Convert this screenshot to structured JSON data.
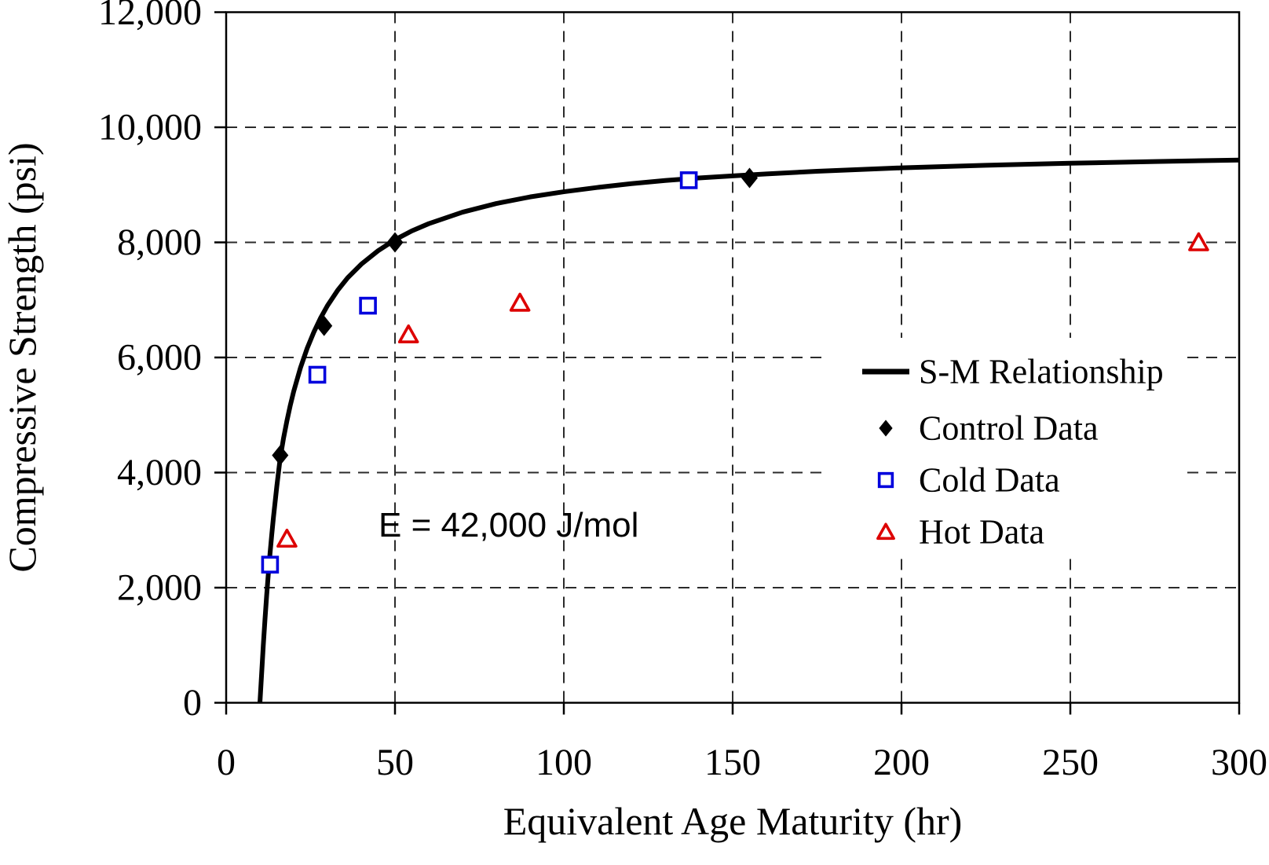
{
  "chart_data": {
    "type": "line",
    "xlabel": "Equivalent Age Maturity (hr)",
    "ylabel": "Compressive Strength (psi)",
    "xlim": [
      0,
      300
    ],
    "ylim": [
      0,
      12000
    ],
    "xticks": {
      "values": [
        0,
        50,
        100,
        150,
        200,
        250,
        300
      ],
      "labels": [
        "0",
        "50",
        "100",
        "150",
        "200",
        "250",
        "300"
      ]
    },
    "yticks": {
      "values": [
        0,
        2000,
        4000,
        6000,
        8000,
        10000,
        12000
      ],
      "labels": [
        "0",
        "2,000",
        "4,000",
        "6,000",
        "8,000",
        "10,000",
        "12,000"
      ]
    },
    "grid": {
      "style": "dashed",
      "color": "#2b2b2b"
    },
    "annotation": {
      "text": "E = 42,000 J/mol",
      "x_hr": 45,
      "y_psi": 2900
    },
    "legend": {
      "position": "right-middle",
      "border": false,
      "background": "#ffffff"
    },
    "series": [
      {
        "name": "S-M Relationship",
        "kind": "line",
        "color": "#000000",
        "points": [
          [
            10,
            0
          ],
          [
            10.5,
            500
          ],
          [
            11,
            1000
          ],
          [
            11.5,
            1450
          ],
          [
            12,
            1870
          ],
          [
            12.5,
            2250
          ],
          [
            13,
            2600
          ],
          [
            13.5,
            2920
          ],
          [
            14,
            3220
          ],
          [
            15,
            3760
          ],
          [
            16,
            4250
          ],
          [
            17,
            4600
          ],
          [
            18,
            4900
          ],
          [
            19,
            5170
          ],
          [
            20,
            5410
          ],
          [
            22,
            5820
          ],
          [
            24,
            6160
          ],
          [
            26,
            6445
          ],
          [
            28,
            6690
          ],
          [
            30,
            6900
          ],
          [
            33,
            7165
          ],
          [
            36,
            7385
          ],
          [
            40,
            7620
          ],
          [
            45,
            7855
          ],
          [
            50,
            8045
          ],
          [
            55,
            8200
          ],
          [
            60,
            8325
          ],
          [
            70,
            8525
          ],
          [
            80,
            8675
          ],
          [
            90,
            8790
          ],
          [
            100,
            8880
          ],
          [
            110,
            8955
          ],
          [
            120,
            9020
          ],
          [
            130,
            9075
          ],
          [
            140,
            9120
          ],
          [
            150,
            9155
          ],
          [
            160,
            9190
          ],
          [
            175,
            9235
          ],
          [
            200,
            9295
          ],
          [
            225,
            9340
          ],
          [
            250,
            9375
          ],
          [
            275,
            9405
          ],
          [
            300,
            9430
          ]
        ]
      },
      {
        "name": "Control Data",
        "kind": "scatter",
        "marker": "filled-diamond",
        "color": "#000000",
        "points": [
          [
            16,
            4300
          ],
          [
            29,
            6550
          ],
          [
            50,
            8000
          ],
          [
            155,
            9120
          ]
        ]
      },
      {
        "name": "Cold Data",
        "kind": "scatter",
        "marker": "open-square",
        "color": "#0000dd",
        "points": [
          [
            13,
            2400
          ],
          [
            27,
            5700
          ],
          [
            42,
            6900
          ],
          [
            137,
            9080
          ]
        ]
      },
      {
        "name": "Hot Data",
        "kind": "scatter",
        "marker": "open-triangle",
        "color": "#dd0000",
        "points": [
          [
            18,
            2850
          ],
          [
            54,
            6400
          ],
          [
            87,
            6950
          ],
          [
            288,
            8000
          ]
        ]
      }
    ]
  }
}
